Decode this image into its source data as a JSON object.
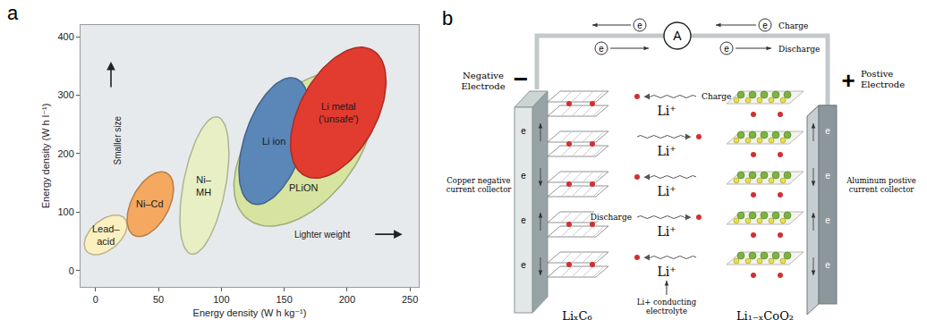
{
  "chart_data": {
    "type": "ellipse",
    "panel": "a",
    "x_label": "Energy density (W h kg⁻¹)",
    "y_label": "Energy density (W h l⁻¹)",
    "xlim": [
      -12,
      257
    ],
    "ylim": [
      -28,
      420
    ],
    "xticks": [
      0,
      50,
      100,
      150,
      200,
      250
    ],
    "yticks": [
      0,
      100,
      200,
      300,
      400
    ],
    "grid": false,
    "annotations": [
      "Smaller size",
      "Lighter weight"
    ],
    "series": [
      {
        "name": "Lead–\nacid",
        "color": "#fbf0c0",
        "x": [
          -9,
          25
        ],
        "y": [
          27,
          95
        ]
      },
      {
        "name": "Ni–Cd",
        "color": "#f4a860",
        "x": [
          25,
          62
        ],
        "y": [
          58,
          169
        ]
      },
      {
        "name": "Ni–\nMH",
        "color": "#e8efc4",
        "x": [
          67,
          106
        ],
        "y": [
          28,
          263
        ]
      },
      {
        "name": "PLiON",
        "color": "#d6e4a0",
        "x": [
          110,
          220
        ],
        "y": [
          76,
          340
        ]
      },
      {
        "name": "Li ion",
        "color": "#5a86b8",
        "x": [
          114,
          170
        ],
        "y": [
          113,
          330
        ]
      },
      {
        "name": "Li metal\n('unsafe')",
        "color": "#e23b30",
        "x": [
          155,
          231
        ],
        "y": [
          158,
          382
        ]
      }
    ]
  },
  "diagram": {
    "panel": "b",
    "meter": "A",
    "electron": "e",
    "circuit_labels": [
      "Charge",
      "Discharge"
    ],
    "negative": {
      "title": "Negative\nElectrode",
      "sign": "−",
      "collector": "Copper negative\ncurrent collector",
      "material": "LiₓC₆"
    },
    "positive": {
      "title": "Postive\nElectrode",
      "sign": "+",
      "collector": "Aluminum postive\ncurrent collector",
      "material": "Li₁₋ₓCoO₂"
    },
    "ions": [
      "Li⁺",
      "Li⁺",
      "Li⁺",
      "Li⁺",
      "Li⁺"
    ],
    "ion_labels": [
      "Charge",
      "Discharge"
    ],
    "electrolyte": "Li+ conducting\nelectrolyte"
  }
}
